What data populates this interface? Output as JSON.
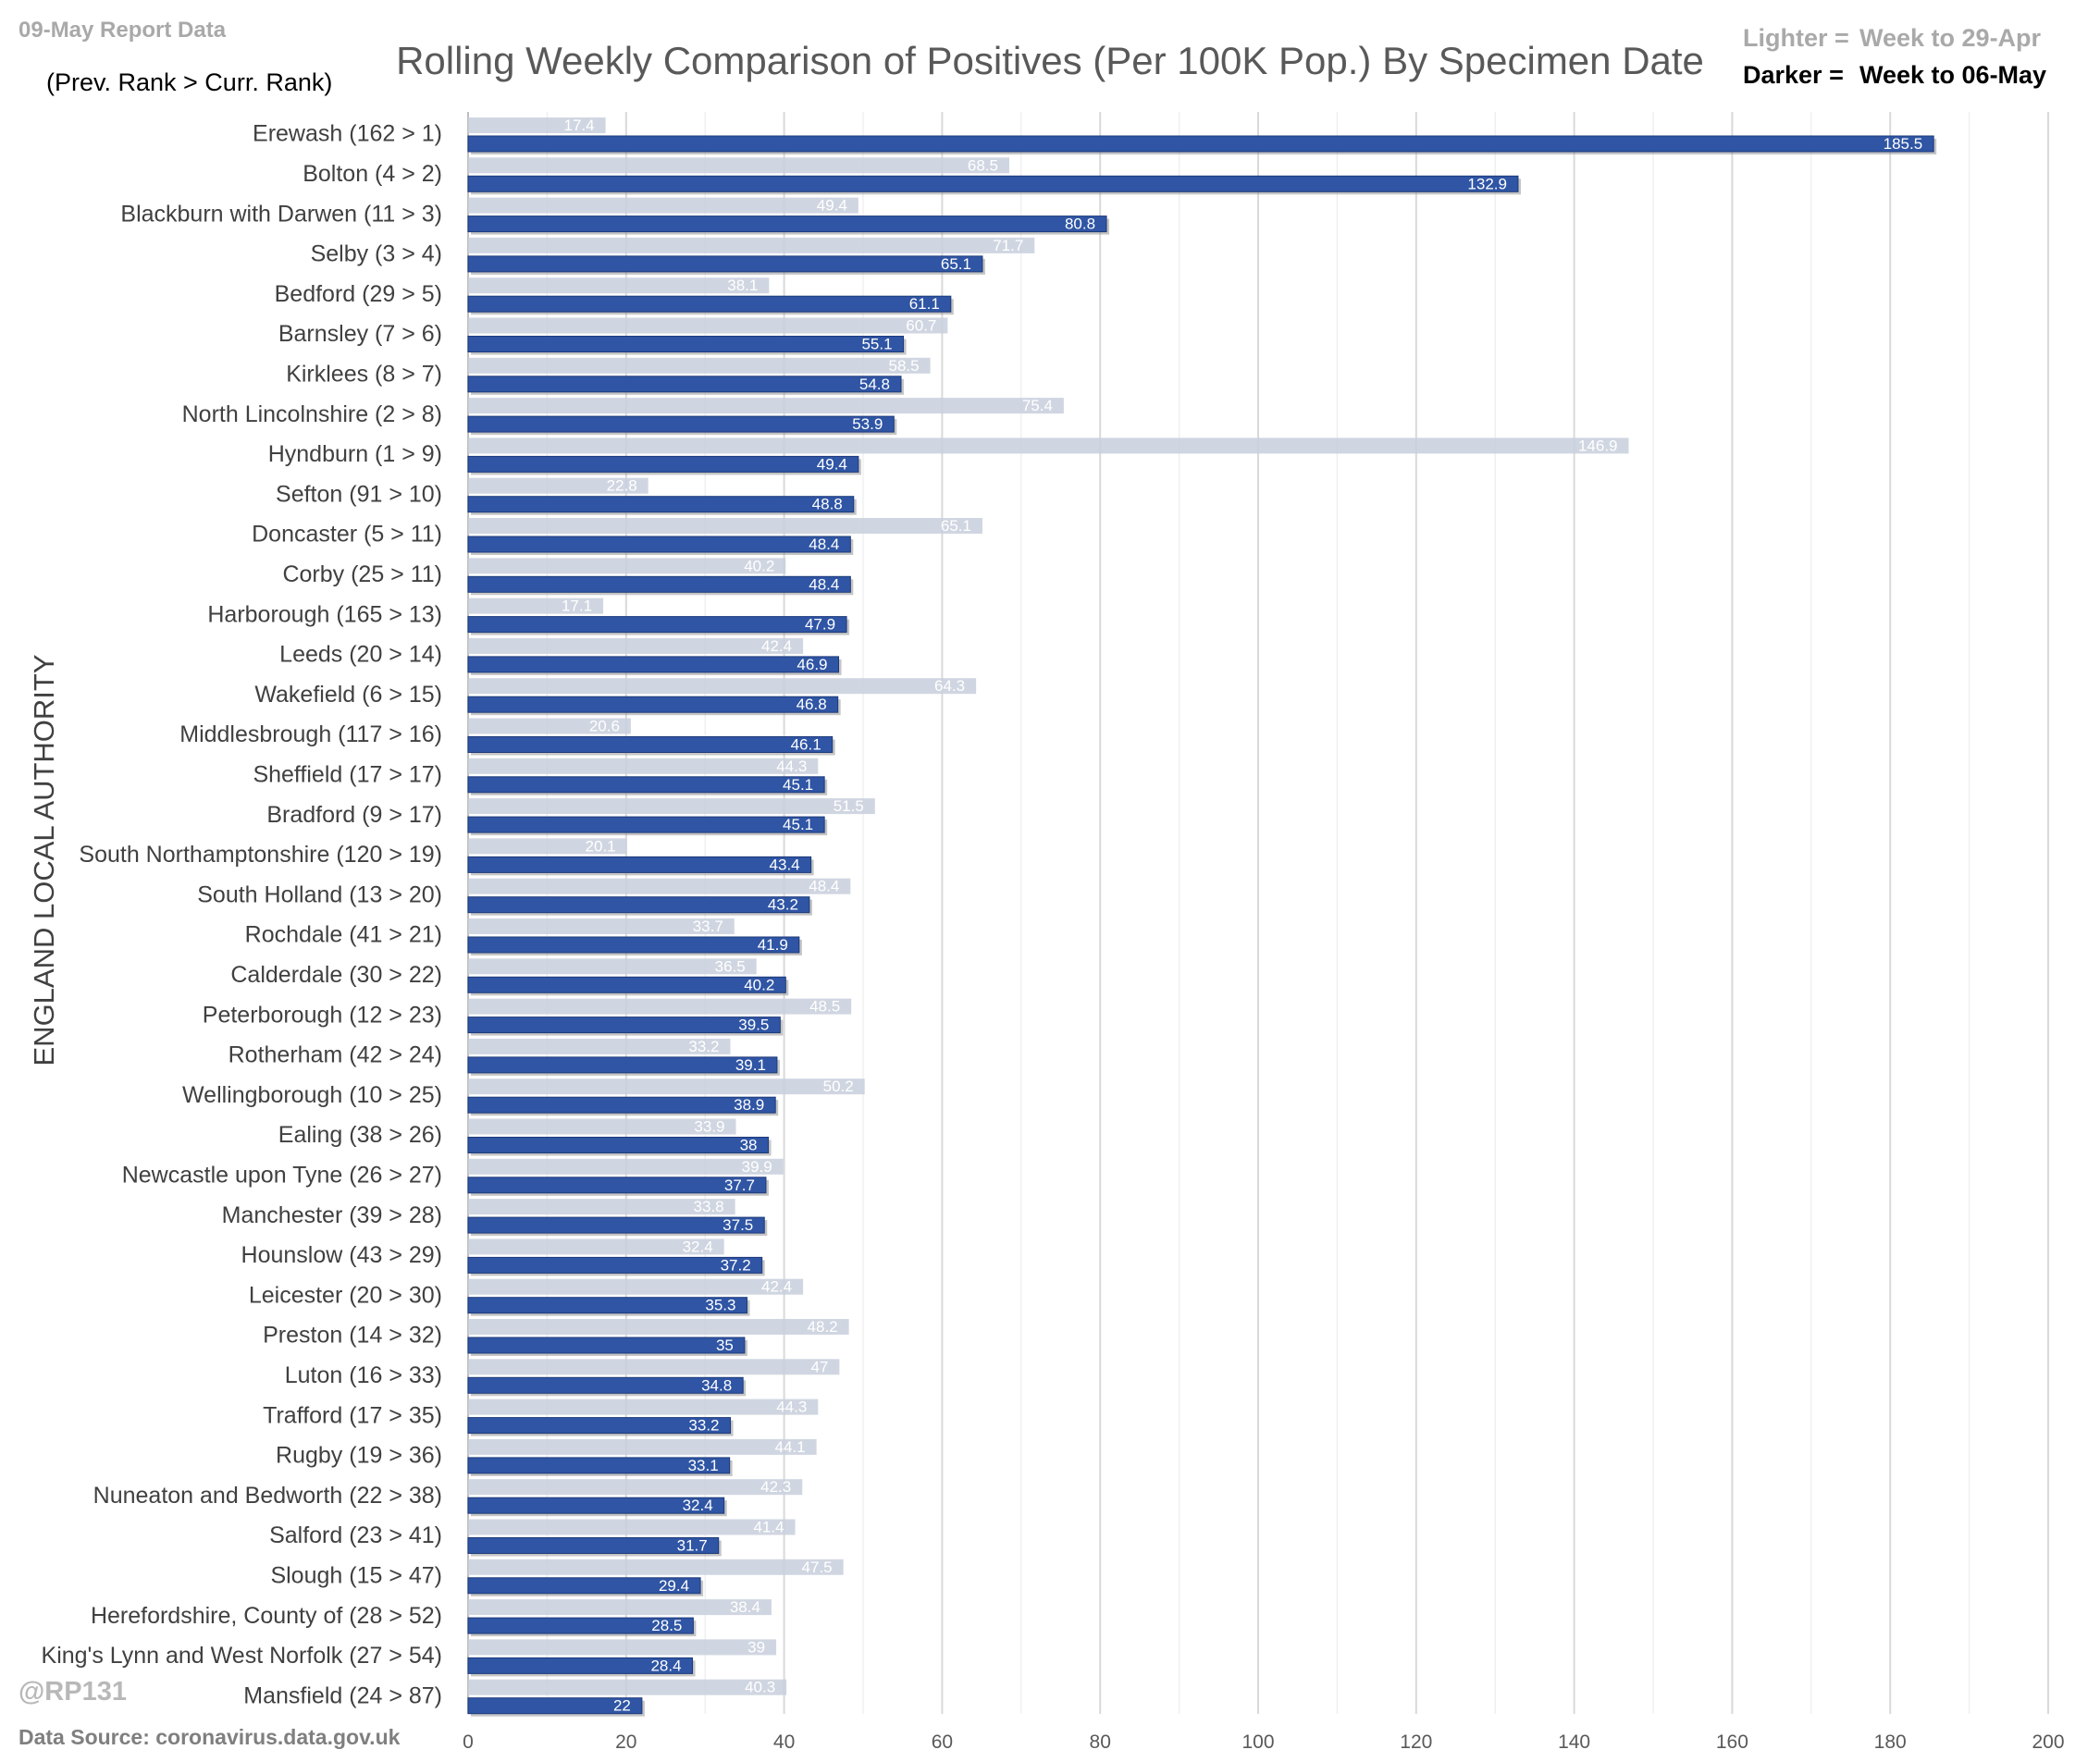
{
  "header": {
    "report_label": "09-May Report Data",
    "rank_note": "(Prev. Rank > Curr. Rank)",
    "title": "Rolling Weekly Comparison of Positives  (Per 100K Pop.) By Specimen Date",
    "legend_light_key": "Lighter = ",
    "legend_light_value": "Week to 29-Apr",
    "legend_dark_key": "Darker = ",
    "legend_dark_value": "Week to 06-May"
  },
  "footer": {
    "handle": "@RP131",
    "source": "Data Source: coronavirus.data.gov.uk"
  },
  "colors": {
    "light_bar": "#c8cfdc",
    "dark_bar": "#2f55a4",
    "dark_bar_edge": "#1d3a7a",
    "light_text": "#a9a9a9",
    "grid": "#d9d9d9"
  },
  "chart_data": {
    "type": "bar",
    "orientation": "horizontal",
    "title": "Rolling Weekly Comparison of Positives  (Per 100K Pop.) By Specimen Date",
    "xlabel": "",
    "ylabel": "ENGLAND LOCAL AUTHORITY",
    "xlim": [
      0,
      200
    ],
    "xticks": [
      0,
      20,
      40,
      60,
      80,
      100,
      120,
      140,
      160,
      180,
      200
    ],
    "grid": true,
    "legend_position": "top-right",
    "categories": [
      "Erewash (162 > 1)",
      "Bolton (4 > 2)",
      "Blackburn with Darwen (11 > 3)",
      "Selby (3 > 4)",
      "Bedford (29 > 5)",
      "Barnsley (7 > 6)",
      "Kirklees (8 > 7)",
      "North Lincolnshire (2 > 8)",
      "Hyndburn (1 > 9)",
      "Sefton (91 > 10)",
      "Doncaster (5 > 11)",
      "Corby (25 > 11)",
      "Harborough (165 > 13)",
      "Leeds (20 > 14)",
      "Wakefield (6 > 15)",
      "Middlesbrough (117 > 16)",
      "Sheffield (17 > 17)",
      "Bradford (9 > 17)",
      "South Northamptonshire (120 > 19)",
      "South Holland (13 > 20)",
      "Rochdale (41 > 21)",
      "Calderdale (30 > 22)",
      "Peterborough (12 > 23)",
      "Rotherham (42 > 24)",
      "Wellingborough (10 > 25)",
      "Ealing (38 > 26)",
      "Newcastle upon Tyne (26 > 27)",
      "Manchester (39 > 28)",
      "Hounslow (43 > 29)",
      "Leicester (20 > 30)",
      "Preston (14 > 32)",
      "Luton (16 > 33)",
      "Trafford (17 > 35)",
      "Rugby (19 > 36)",
      "Nuneaton and Bedworth (22 > 38)",
      "Salford (23 > 41)",
      "Slough (15 > 47)",
      "Herefordshire, County of (28 > 52)",
      "King's Lynn and West Norfolk (27 > 54)",
      "Mansfield (24 > 87)"
    ],
    "series": [
      {
        "name": "Week to 29-Apr",
        "values": [
          17.4,
          68.5,
          49.4,
          71.7,
          38.1,
          60.7,
          58.5,
          75.4,
          146.9,
          22.8,
          65.1,
          40.2,
          17.1,
          42.4,
          64.3,
          20.6,
          44.3,
          51.5,
          20.1,
          48.4,
          33.7,
          36.5,
          48.5,
          33.2,
          50.2,
          33.9,
          39.9,
          33.8,
          32.4,
          42.4,
          48.2,
          47,
          44.3,
          44.1,
          42.3,
          41.4,
          47.5,
          38.4,
          39,
          40.3
        ]
      },
      {
        "name": "Week to 06-May",
        "values": [
          185.5,
          132.9,
          80.8,
          65.1,
          61.1,
          55.1,
          54.8,
          53.9,
          49.4,
          48.8,
          48.4,
          48.4,
          47.9,
          46.9,
          46.8,
          46.1,
          45.1,
          45.1,
          43.4,
          43.2,
          41.9,
          40.2,
          39.5,
          39.1,
          38.9,
          38,
          37.7,
          37.5,
          37.2,
          35.3,
          35,
          34.8,
          33.2,
          33.1,
          32.4,
          31.7,
          29.4,
          28.5,
          28.4,
          22
        ]
      }
    ]
  }
}
